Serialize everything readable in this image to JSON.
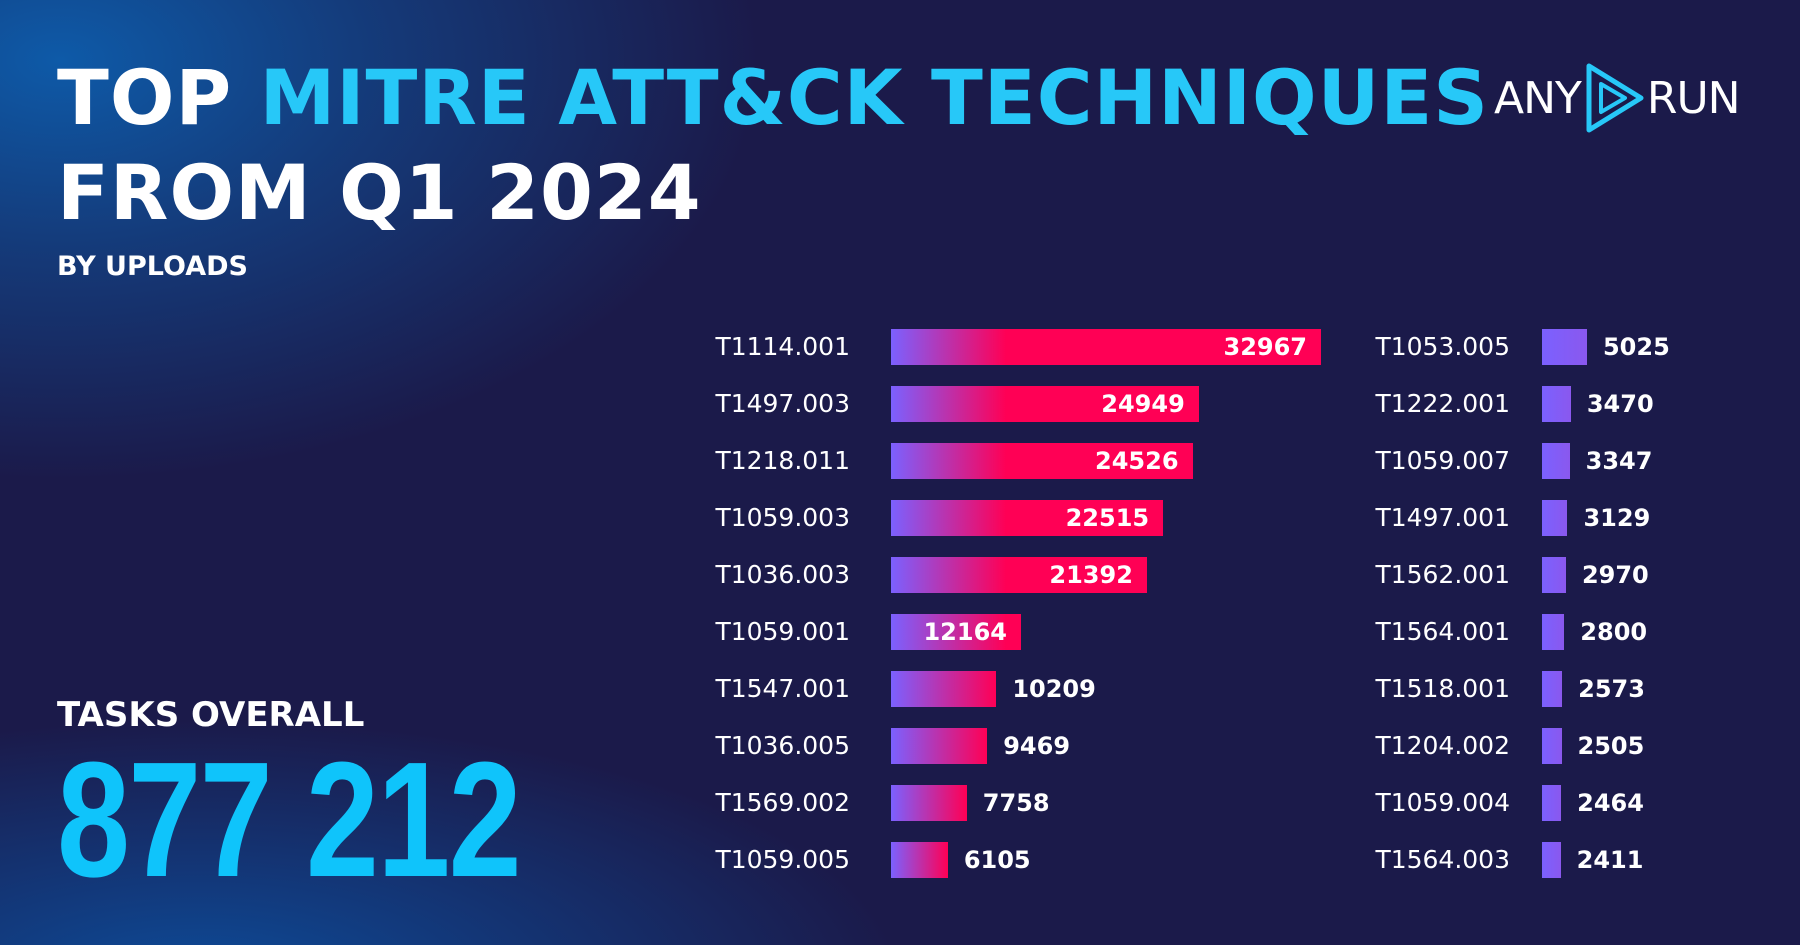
{
  "header": {
    "title_white": "TOP",
    "title_cyan": "MITRE ATT&CK TECHNIQUES",
    "title_line2": "FROM Q1 2024",
    "subtitle": "BY UPLOADS"
  },
  "logo": {
    "text_left": "ANY",
    "text_right": "RUN"
  },
  "summary": {
    "label": "TASKS OVERALL",
    "value": "877 212"
  },
  "colors": {
    "accent_cyan": "#27c8f8",
    "bar_purple": "#7b61ff",
    "bar_pink": "#ff0055",
    "background": "#1b1a4a"
  },
  "chart_data": {
    "type": "bar",
    "orientation": "horizontal",
    "columns": [
      {
        "categories": [
          "T1114.001",
          "T1497.003",
          "T1218.011",
          "T1059.003",
          "T1036.003",
          "T1059.001",
          "T1547.001",
          "T1036.005",
          "T1569.002",
          "T1059.005"
        ],
        "values": [
          32967,
          24949,
          24526,
          22515,
          21392,
          12164,
          10209,
          9469,
          7758,
          6105
        ]
      },
      {
        "categories": [
          "T1053.005",
          "T1222.001",
          "T1059.007",
          "T1497.001",
          "T1562.001",
          "T1564.001",
          "T1518.001",
          "T1204.002",
          "T1059.004",
          "T1564.003"
        ],
        "values": [
          5025,
          3470,
          3347,
          3129,
          2970,
          2800,
          2573,
          2505,
          2464,
          2411
        ]
      }
    ]
  }
}
